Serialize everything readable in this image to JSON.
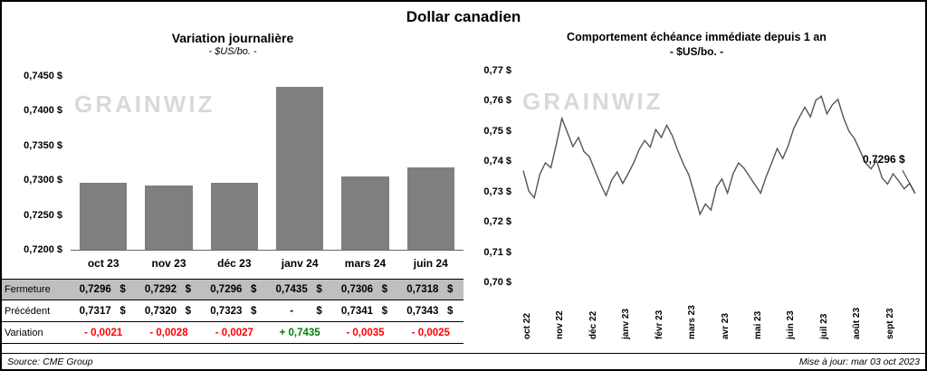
{
  "title": "Dollar canadien",
  "watermark": "GRAINWIZ",
  "colors": {
    "bar": "#7f7f7f",
    "line": "#555555",
    "leader": "#333333",
    "negative": "#ff0000",
    "positive": "#008000",
    "table_header_bg": "#bfbfbf",
    "watermark": "#d8d8d8"
  },
  "chart_data": [
    {
      "type": "bar",
      "title": "Variation journalière",
      "subtitle": "- $US/bo. -",
      "categories": [
        "oct 23",
        "nov 23",
        "déc 23",
        "janv 24",
        "mars 24",
        "juin 24"
      ],
      "values": [
        0.7296,
        0.7292,
        0.7296,
        0.7435,
        0.7306,
        0.7318
      ],
      "ylim": [
        0.72,
        0.745
      ],
      "plot_top_value": 0.7467,
      "y_tick_values": [
        0.745,
        0.74,
        0.735,
        0.73,
        0.725,
        0.72
      ],
      "y_tick_labels": [
        "0,7450 $",
        "0,7400 $",
        "0,7350 $",
        "0,7300 $",
        "0,7250 $",
        "0,7200 $"
      ],
      "grid": false,
      "legend": "none"
    },
    {
      "type": "line",
      "title": "Comportement échéance immédiate depuis 1 an",
      "subtitle": "- $US/bo. -",
      "x_tick_labels": [
        "oct 22",
        "nov 22",
        "déc 22",
        "janv 23",
        "févr 23",
        "mars 23",
        "avr 23",
        "mai 23",
        "juin 23",
        "juil 23",
        "août 23",
        "sept 23"
      ],
      "ylim": [
        0.7,
        0.77
      ],
      "y_tick_labels": [
        "0,77 $",
        "0,76 $",
        "0,75 $",
        "0,74 $",
        "0,73 $",
        "0,72 $",
        "0,71 $",
        "0,70 $"
      ],
      "annotation": "0,7296 $",
      "last_value": 0.7296,
      "grid": false,
      "legend": "none",
      "values": [
        0.7372,
        0.7305,
        0.7282,
        0.736,
        0.7398,
        0.7382,
        0.746,
        0.7545,
        0.7498,
        0.7452,
        0.7482,
        0.7435,
        0.7418,
        0.7372,
        0.7328,
        0.729,
        0.734,
        0.7368,
        0.733,
        0.7362,
        0.7398,
        0.7442,
        0.7472,
        0.745,
        0.7508,
        0.7482,
        0.7522,
        0.7488,
        0.7438,
        0.7395,
        0.7358,
        0.7295,
        0.7228,
        0.7262,
        0.7242,
        0.7318,
        0.7345,
        0.7298,
        0.7362,
        0.7398,
        0.738,
        0.7352,
        0.7325,
        0.7298,
        0.7352,
        0.7398,
        0.7445,
        0.7412,
        0.7455,
        0.7512,
        0.7548,
        0.7582,
        0.755,
        0.7605,
        0.7618,
        0.756,
        0.759,
        0.7608,
        0.7548,
        0.7502,
        0.7478,
        0.7438,
        0.7398,
        0.7378,
        0.7405,
        0.7348,
        0.7328,
        0.7362,
        0.7338,
        0.7312,
        0.733,
        0.7296
      ]
    }
  ],
  "table": {
    "rows": [
      {
        "label": "Fermeture",
        "type": "currency",
        "cells": [
          {
            "num": "0,7296",
            "cur": "$"
          },
          {
            "num": "0,7292",
            "cur": "$"
          },
          {
            "num": "0,7296",
            "cur": "$"
          },
          {
            "num": "0,7435",
            "cur": "$"
          },
          {
            "num": "0,7306",
            "cur": "$"
          },
          {
            "num": "0,7318",
            "cur": "$"
          }
        ]
      },
      {
        "label": "Précédent",
        "type": "currency",
        "cells": [
          {
            "num": "0,7317",
            "cur": "$"
          },
          {
            "num": "0,7320",
            "cur": "$"
          },
          {
            "num": "0,7323",
            "cur": "$"
          },
          {
            "num": "-",
            "cur": "$"
          },
          {
            "num": "0,7341",
            "cur": "$"
          },
          {
            "num": "0,7343",
            "cur": "$"
          }
        ]
      },
      {
        "label": "Variation",
        "type": "delta",
        "cells": [
          {
            "num": "- 0,0021",
            "sign": "neg"
          },
          {
            "num": "- 0,0028",
            "sign": "neg"
          },
          {
            "num": "- 0,0027",
            "sign": "neg"
          },
          {
            "num": "+ 0,7435",
            "sign": "pos"
          },
          {
            "num": "- 0,0035",
            "sign": "neg"
          },
          {
            "num": "- 0,0025",
            "sign": "neg"
          }
        ]
      }
    ]
  },
  "footer": {
    "source": "Source: CME Group",
    "updated": "Mise à jour: mar 03 oct 2023"
  }
}
